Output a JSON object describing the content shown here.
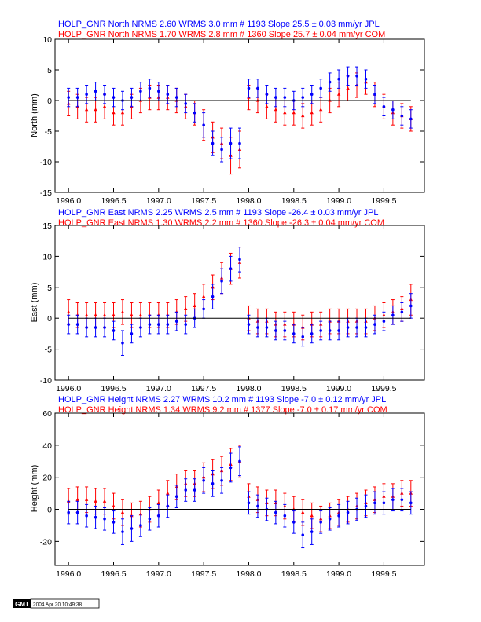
{
  "colors": {
    "jpl": "#0000ff",
    "com": "#ff0000",
    "axis": "#000000",
    "zero": "#000000"
  },
  "footer": {
    "logo_text": "GMT",
    "timestamp": "2004 Apr 20 10:49:38"
  },
  "chart_data": [
    {
      "type": "scatter",
      "title_lines": [
        {
          "text": "HOLP_GNR North NRMS 2.60 WRMS  3.0 mm # 1193 Slope   25.5 ±  0.03 mm/yr JPL",
          "color": "#0000ff"
        },
        {
          "text": "HOLP_GNR North NRMS 1.70 WRMS  2.8 mm # 1360 Slope   25.7 ±  0.04 mm/yr COM",
          "color": "#ff0000"
        }
      ],
      "ylabel": "North (mm)",
      "xlim": [
        1995.85,
        1999.95
      ],
      "ylim": [
        -15,
        10
      ],
      "xticks": [
        1996.0,
        1996.5,
        1997.0,
        1997.5,
        1998.0,
        1998.5,
        1999.0,
        1999.5
      ],
      "xticklabels": [
        "1996.0",
        "1996.5",
        "1997.0",
        "1997.5",
        "1998.0",
        "1998.5",
        "1999.0",
        "1999.5"
      ],
      "yticks": [
        -15,
        -10,
        -5,
        0,
        5,
        10
      ],
      "series": [
        {
          "color": "#ff0000",
          "marker": "triangle",
          "x": [
            1996.0,
            1996.1,
            1996.2,
            1996.3,
            1996.4,
            1996.5,
            1996.6,
            1996.7,
            1996.8,
            1996.9,
            1997.0,
            1997.1,
            1997.2,
            1997.3,
            1997.4,
            1997.5,
            1997.6,
            1997.7,
            1997.8,
            1997.9,
            1998.0,
            1998.1,
            1998.2,
            1998.3,
            1998.4,
            1998.5,
            1998.6,
            1998.7,
            1998.8,
            1998.9,
            1999.0,
            1999.1,
            1999.2,
            1999.3,
            1999.4,
            1999.5,
            1999.6,
            1999.7,
            1999.8
          ],
          "y": [
            -0.5,
            -1.0,
            -1.5,
            -1.5,
            -1.0,
            -2.0,
            -2.0,
            -1.0,
            0.0,
            0.5,
            0.5,
            0.5,
            0.0,
            -1.0,
            -2.0,
            -4.0,
            -6.0,
            -7.0,
            -9.0,
            -8.0,
            0.5,
            0.0,
            -1.0,
            -1.5,
            -2.0,
            -2.0,
            -2.5,
            -2.0,
            -1.5,
            0.0,
            1.0,
            2.0,
            2.5,
            3.0,
            1.0,
            -1.0,
            -2.0,
            -2.5,
            -3.0
          ],
          "err": [
            2.0,
            2.0,
            2.0,
            2.0,
            2.0,
            2.0,
            2.0,
            2.0,
            2.0,
            2.0,
            2.0,
            2.0,
            2.0,
            2.0,
            2.0,
            2.5,
            2.5,
            2.5,
            3.0,
            3.0,
            2.0,
            2.0,
            2.0,
            2.0,
            2.0,
            2.0,
            2.0,
            2.0,
            2.0,
            2.0,
            2.0,
            2.0,
            2.0,
            2.0,
            2.0,
            2.0,
            2.0,
            2.0,
            2.0
          ]
        },
        {
          "color": "#0000ff",
          "marker": "circle",
          "x": [
            1996.0,
            1996.1,
            1996.2,
            1996.3,
            1996.4,
            1996.5,
            1996.6,
            1996.7,
            1996.8,
            1996.9,
            1997.0,
            1997.1,
            1997.2,
            1997.3,
            1997.4,
            1997.5,
            1997.6,
            1997.7,
            1997.8,
            1997.9,
            1998.0,
            1998.1,
            1998.2,
            1998.3,
            1998.4,
            1998.5,
            1998.6,
            1998.7,
            1998.8,
            1998.9,
            1999.0,
            1999.1,
            1999.2,
            1999.3,
            1999.4,
            1999.5,
            1999.6,
            1999.7,
            1999.8
          ],
          "y": [
            0.5,
            0.5,
            1.0,
            1.5,
            1.0,
            0.5,
            0.0,
            0.5,
            1.5,
            2.0,
            1.5,
            1.0,
            0.5,
            -0.5,
            -2.0,
            -4.0,
            -7.0,
            -8.0,
            -7.0,
            -7.0,
            2.0,
            2.0,
            1.0,
            0.5,
            0.5,
            0.0,
            0.5,
            1.0,
            2.0,
            3.0,
            3.5,
            4.0,
            4.0,
            3.5,
            1.0,
            -1.0,
            -1.5,
            -2.5,
            -3.0
          ],
          "err": [
            1.5,
            1.5,
            1.5,
            1.5,
            1.5,
            1.5,
            1.5,
            1.5,
            1.5,
            1.5,
            1.5,
            1.5,
            1.5,
            1.5,
            1.5,
            2.0,
            2.0,
            2.0,
            2.5,
            2.5,
            1.5,
            1.5,
            1.5,
            1.5,
            1.5,
            1.5,
            1.5,
            1.5,
            1.5,
            1.5,
            1.5,
            1.5,
            1.5,
            1.5,
            1.5,
            1.5,
            1.5,
            1.5,
            1.5
          ]
        }
      ]
    },
    {
      "type": "scatter",
      "title_lines": [
        {
          "text": "HOLP_GNR East NRMS 2.25 WRMS  2.5 mm # 1193 Slope  -26.4 ±  0.03 mm/yr JPL",
          "color": "#0000ff"
        },
        {
          "text": "HOLP_GNR East NRMS 1.30 WRMS  2.2 mm # 1360 Slope  -26.3 ±  0.04 mm/yr COM",
          "color": "#ff0000"
        }
      ],
      "ylabel": "East (mm)",
      "xlim": [
        1995.85,
        1999.95
      ],
      "ylim": [
        -10,
        15
      ],
      "xticks": [
        1996.0,
        1996.5,
        1997.0,
        1997.5,
        1998.0,
        1998.5,
        1999.0,
        1999.5
      ],
      "xticklabels": [
        "1996.0",
        "1996.5",
        "1997.0",
        "1997.5",
        "1998.0",
        "1998.5",
        "1999.0",
        "1999.5"
      ],
      "yticks": [
        -10,
        -5,
        0,
        5,
        10,
        15
      ],
      "series": [
        {
          "color": "#ff0000",
          "marker": "triangle",
          "x": [
            1996.0,
            1996.1,
            1996.2,
            1996.3,
            1996.4,
            1996.5,
            1996.6,
            1996.7,
            1996.8,
            1996.9,
            1997.0,
            1997.1,
            1997.2,
            1997.3,
            1997.4,
            1997.5,
            1997.6,
            1997.7,
            1997.8,
            1997.9,
            1998.0,
            1998.1,
            1998.2,
            1998.3,
            1998.4,
            1998.5,
            1998.6,
            1998.7,
            1998.8,
            1998.9,
            1999.0,
            1999.1,
            1999.2,
            1999.3,
            1999.4,
            1999.5,
            1999.6,
            1999.7,
            1999.8
          ],
          "y": [
            1.0,
            0.5,
            0.5,
            0.5,
            0.5,
            0.5,
            1.0,
            0.5,
            0.5,
            0.5,
            0.5,
            0.5,
            1.0,
            1.5,
            2.0,
            3.5,
            5.0,
            6.5,
            8.0,
            9.0,
            0.0,
            -0.5,
            -0.5,
            -1.0,
            -1.0,
            -1.0,
            -1.5,
            -1.0,
            -1.0,
            -0.5,
            -0.5,
            -0.5,
            -0.5,
            -0.5,
            0.0,
            0.5,
            1.0,
            1.5,
            3.0
          ],
          "err": [
            2.0,
            2.0,
            2.0,
            2.0,
            2.0,
            2.0,
            2.0,
            2.0,
            2.0,
            2.0,
            2.0,
            2.0,
            2.0,
            2.0,
            2.0,
            2.0,
            2.0,
            2.5,
            2.5,
            2.5,
            2.0,
            2.0,
            2.0,
            2.0,
            2.0,
            2.0,
            2.0,
            2.0,
            2.0,
            2.0,
            2.0,
            2.0,
            2.0,
            2.0,
            2.0,
            2.0,
            2.0,
            2.0,
            2.5
          ]
        },
        {
          "color": "#0000ff",
          "marker": "circle",
          "x": [
            1996.0,
            1996.1,
            1996.2,
            1996.3,
            1996.4,
            1996.5,
            1996.6,
            1996.7,
            1996.8,
            1996.9,
            1997.0,
            1997.1,
            1997.2,
            1997.3,
            1997.4,
            1997.5,
            1997.6,
            1997.7,
            1997.8,
            1997.9,
            1998.0,
            1998.1,
            1998.2,
            1998.3,
            1998.4,
            1998.5,
            1998.6,
            1998.7,
            1998.8,
            1998.9,
            1999.0,
            1999.1,
            1999.2,
            1999.3,
            1999.4,
            1999.5,
            1999.6,
            1999.7,
            1999.8
          ],
          "y": [
            -1.0,
            -1.0,
            -1.5,
            -1.5,
            -1.5,
            -2.0,
            -4.0,
            -2.5,
            -1.5,
            -1.0,
            -1.0,
            -1.0,
            -0.5,
            -1.0,
            0.0,
            1.5,
            3.5,
            6.0,
            8.0,
            9.5,
            -1.0,
            -1.5,
            -1.5,
            -2.0,
            -2.0,
            -2.5,
            -3.0,
            -2.5,
            -2.0,
            -2.0,
            -2.0,
            -1.5,
            -1.5,
            -1.5,
            -1.0,
            -0.5,
            0.5,
            1.0,
            2.0
          ],
          "err": [
            1.5,
            1.5,
            1.5,
            1.5,
            1.5,
            1.5,
            2.0,
            1.5,
            1.5,
            1.5,
            1.5,
            1.5,
            1.5,
            1.5,
            1.5,
            1.5,
            2.0,
            2.0,
            2.0,
            2.0,
            1.5,
            1.5,
            1.5,
            1.5,
            1.5,
            1.5,
            1.5,
            1.5,
            1.5,
            1.5,
            1.5,
            1.5,
            1.5,
            1.5,
            1.5,
            1.5,
            1.5,
            1.5,
            2.0
          ]
        }
      ]
    },
    {
      "type": "scatter",
      "title_lines": [
        {
          "text": "HOLP_GNR Height NRMS 2.27 WRMS 10.2 mm # 1193 Slope   -7.0 ±  0.12 mm/yr JPL",
          "color": "#0000ff"
        },
        {
          "text": "HOLP_GNR Height NRMS 1.34 WRMS  9.2 mm # 1377 Slope   -7.0 ±  0.17 mm/yr COM",
          "color": "#ff0000"
        }
      ],
      "ylabel": "Height (mm)",
      "xlim": [
        1995.85,
        1999.95
      ],
      "ylim": [
        -35,
        60
      ],
      "xticks": [
        1996.0,
        1996.5,
        1997.0,
        1997.5,
        1998.0,
        1998.5,
        1999.0,
        1999.5
      ],
      "xticklabels": [
        "1996.0",
        "1996.5",
        "1997.0",
        "1997.5",
        "1998.0",
        "1998.5",
        "1999.0",
        "1999.5"
      ],
      "yticks": [
        -20,
        0,
        20,
        40,
        60
      ],
      "series": [
        {
          "color": "#ff0000",
          "marker": "triangle",
          "x": [
            1996.0,
            1996.1,
            1996.2,
            1996.3,
            1996.4,
            1996.5,
            1996.6,
            1996.7,
            1996.8,
            1996.9,
            1997.0,
            1997.1,
            1997.2,
            1997.3,
            1997.4,
            1997.5,
            1997.6,
            1997.7,
            1997.8,
            1997.9,
            1998.0,
            1998.1,
            1998.2,
            1998.3,
            1998.4,
            1998.5,
            1998.6,
            1998.7,
            1998.8,
            1998.9,
            1999.0,
            1999.1,
            1999.2,
            1999.3,
            1999.4,
            1999.5,
            1999.6,
            1999.7,
            1999.8
          ],
          "y": [
            5.0,
            6.0,
            6.0,
            5.0,
            5.0,
            2.0,
            -2.0,
            -4.0,
            -3.0,
            0.0,
            4.0,
            10.0,
            14.0,
            16.0,
            16.0,
            20.0,
            22.0,
            24.0,
            28.0,
            30.0,
            8.0,
            6.0,
            4.0,
            4.0,
            2.0,
            0.0,
            -2.0,
            -4.0,
            -6.0,
            -4.0,
            -2.0,
            0.0,
            2.0,
            4.0,
            6.0,
            8.0,
            8.0,
            10.0,
            10.0
          ],
          "err": [
            8.0,
            8.0,
            8.0,
            8.0,
            8.0,
            8.0,
            8.0,
            8.0,
            8.0,
            8.0,
            8.0,
            8.0,
            8.0,
            8.0,
            8.0,
            9.0,
            9.0,
            9.0,
            10.0,
            10.0,
            8.0,
            8.0,
            8.0,
            8.0,
            8.0,
            8.0,
            8.0,
            8.0,
            8.0,
            8.0,
            8.0,
            8.0,
            8.0,
            8.0,
            8.0,
            8.0,
            8.0,
            8.0,
            8.0
          ]
        },
        {
          "color": "#0000ff",
          "marker": "circle",
          "x": [
            1996.0,
            1996.1,
            1996.2,
            1996.3,
            1996.4,
            1996.5,
            1996.6,
            1996.7,
            1996.8,
            1996.9,
            1997.0,
            1997.1,
            1997.2,
            1997.3,
            1997.4,
            1997.5,
            1997.6,
            1997.7,
            1997.8,
            1997.9,
            1998.0,
            1998.1,
            1998.2,
            1998.3,
            1998.4,
            1998.5,
            1998.6,
            1998.7,
            1998.8,
            1998.9,
            1999.0,
            1999.1,
            1999.2,
            1999.3,
            1999.4,
            1999.5,
            1999.6,
            1999.7,
            1999.8
          ],
          "y": [
            -2.0,
            -2.0,
            -4.0,
            -5.0,
            -6.0,
            -8.0,
            -14.0,
            -12.0,
            -10.0,
            -6.0,
            -4.0,
            2.0,
            8.0,
            12.0,
            12.0,
            18.0,
            16.0,
            18.0,
            26.0,
            30.0,
            4.0,
            2.0,
            0.0,
            -2.0,
            -4.0,
            -8.0,
            -16.0,
            -14.0,
            -8.0,
            -6.0,
            -4.0,
            -2.0,
            0.0,
            2.0,
            4.0,
            4.0,
            6.0,
            6.0,
            4.0
          ],
          "err": [
            7.0,
            7.0,
            7.0,
            7.0,
            7.0,
            7.0,
            8.0,
            8.0,
            7.0,
            7.0,
            7.0,
            7.0,
            7.0,
            7.0,
            7.0,
            8.0,
            8.0,
            8.0,
            9.0,
            9.0,
            7.0,
            7.0,
            7.0,
            7.0,
            7.0,
            7.0,
            8.0,
            8.0,
            7.0,
            7.0,
            7.0,
            7.0,
            7.0,
            7.0,
            7.0,
            7.0,
            7.0,
            7.0,
            7.0
          ]
        }
      ]
    }
  ]
}
